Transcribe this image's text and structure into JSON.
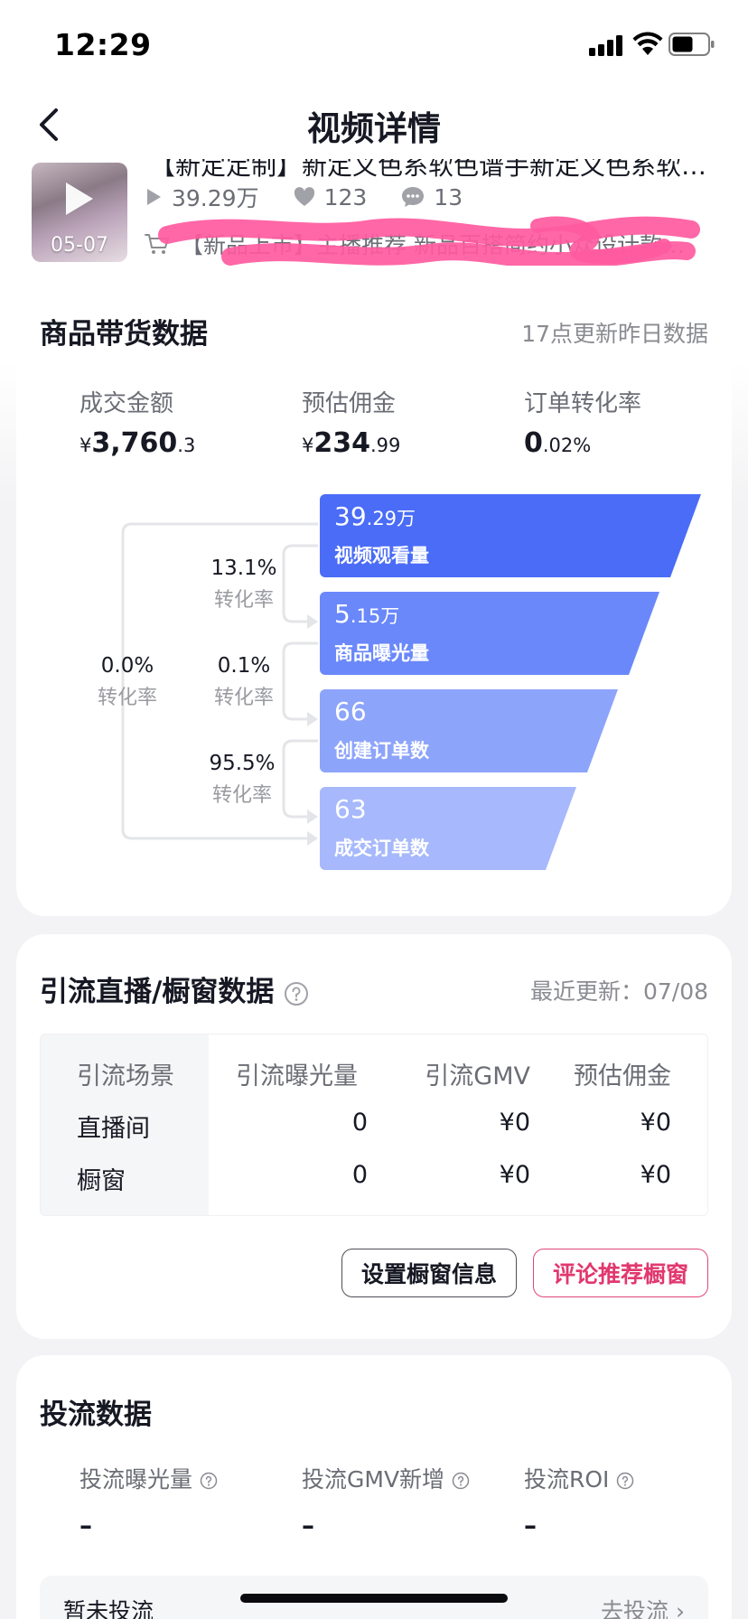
{
  "status_bar": {
    "time": "12:29"
  },
  "nav": {
    "title": "视频详情"
  },
  "video": {
    "title": "【新定定制】新定义色系软色谱手新定义色系软色谱",
    "thumb_date": "05-07",
    "views": "39.29万",
    "likes": "123",
    "comments": "13",
    "product_name": "【新品上市】主播推荐 新品百搭简约小众设计款…"
  },
  "goods": {
    "title": "商品带货数据",
    "update_note": "17点更新昨日数据",
    "metrics": [
      {
        "label": "成交金额",
        "currency": "¥",
        "value_main": "3,760",
        "value_frac": ".3"
      },
      {
        "label": "预估佣金",
        "currency": "¥",
        "value_main": "234",
        "value_frac": ".99"
      },
      {
        "label": "订单转化率",
        "currency": "",
        "value_main": "0",
        "value_frac": ".02%"
      }
    ],
    "funnel": [
      {
        "main": "39",
        "frac": ".29万",
        "label": "视频观看量",
        "color": "#4a6cf7"
      },
      {
        "main": "5",
        "frac": ".15万",
        "label": "商品曝光量",
        "color": "#6a88fa"
      },
      {
        "main": "66",
        "frac": "",
        "label": "创建订单数",
        "color": "#8da4fb"
      },
      {
        "main": "63",
        "frac": "",
        "label": "成交订单数",
        "color": "#a7b9fc"
      }
    ],
    "conversions": {
      "step1": {
        "pct": "13.1%",
        "label": "转化率"
      },
      "step2": {
        "pct": "0.1%",
        "label": "转化率"
      },
      "step3": {
        "pct": "95.5%",
        "label": "转化率"
      },
      "overall": {
        "pct": "0.0%",
        "label": "转化率"
      }
    }
  },
  "traffic": {
    "title": "引流直播/橱窗数据",
    "update_note": "最近更新：07/08",
    "columns": [
      "引流场景",
      "引流曝光量",
      "引流GMV",
      "预估佣金"
    ],
    "rows": [
      [
        "直播间",
        "0",
        "¥0",
        "¥0"
      ],
      [
        "橱窗",
        "0",
        "¥0",
        "¥0"
      ]
    ],
    "btn_set_window": "设置橱窗信息",
    "btn_comment_recommend": "评论推荐橱窗"
  },
  "ads": {
    "title": "投流数据",
    "metrics": [
      {
        "label": "投流曝光量",
        "value": "–"
      },
      {
        "label": "投流GMV新增",
        "value": "–"
      },
      {
        "label": "投流ROI",
        "value": "–"
      }
    ],
    "bar_text": "暂未投流",
    "bar_link": "去投流 ›"
  }
}
